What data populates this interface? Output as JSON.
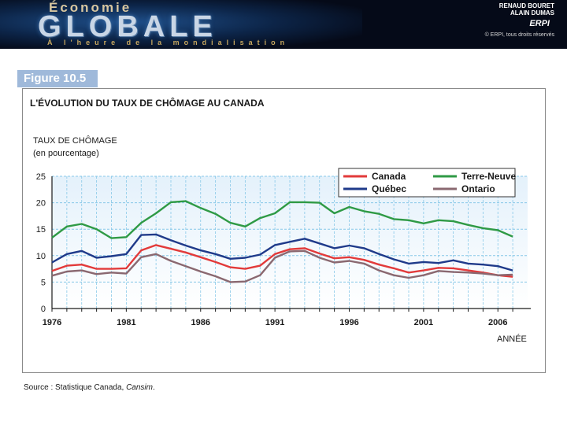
{
  "header": {
    "brand_top": "Économie",
    "brand_main": "GLOBALE",
    "brand_sub": "À l'heure de la mondialisation",
    "author1": "RENAUD BOURET",
    "author2": "ALAIN DUMAS",
    "publisher": "ERPI",
    "copyright": "© ERPI, tous droits réservés"
  },
  "figure": {
    "label": "Figure 10.5",
    "source_prefix": "Source : Statistique Canada, ",
    "source_italic": "Cansim",
    "source_suffix": "."
  },
  "colors": {
    "banner": "#050a18",
    "label_bg": "#9fb9da",
    "grid": "#87c8e8",
    "plot_bg_top": "#e4f1fb",
    "plot_bg_bottom": "#ffffff"
  },
  "chart_data": {
    "type": "line",
    "title": "L'ÉVOLUTION DU TAUX DE CHÔMAGE AU CANADA",
    "ylabel_line1": "TAUX DE CHÔMAGE",
    "ylabel_line2": "(en pourcentage)",
    "xlabel": "ANNÉE",
    "xlim": [
      1976,
      2008
    ],
    "ylim": [
      0,
      25
    ],
    "yticks": [
      0,
      5,
      10,
      15,
      20,
      25
    ],
    "xticks": [
      "1976",
      "1981",
      "1986",
      "1991",
      "1996",
      "2001",
      "2006"
    ],
    "grid": true,
    "legend_position": "top-right",
    "x": [
      1976,
      1977,
      1978,
      1979,
      1980,
      1981,
      1982,
      1983,
      1984,
      1985,
      1986,
      1987,
      1988,
      1989,
      1990,
      1991,
      1992,
      1993,
      1994,
      1995,
      1996,
      1997,
      1998,
      1999,
      2000,
      2001,
      2002,
      2003,
      2004,
      2005,
      2006,
      2007
    ],
    "series": [
      {
        "name": "Canada",
        "color": "#e23a3a",
        "values": [
          7.1,
          8.1,
          8.3,
          7.5,
          7.5,
          7.6,
          11.0,
          12.0,
          11.3,
          10.6,
          9.7,
          8.8,
          7.8,
          7.5,
          8.1,
          10.3,
          11.2,
          11.4,
          10.4,
          9.5,
          9.7,
          9.2,
          8.3,
          7.6,
          6.8,
          7.2,
          7.7,
          7.6,
          7.2,
          6.8,
          6.3,
          6.0
        ]
      },
      {
        "name": "Terre-Neuve",
        "color": "#2f9a45",
        "values": [
          13.4,
          15.5,
          16.0,
          15.0,
          13.3,
          13.5,
          16.2,
          18.0,
          20.1,
          20.3,
          19.0,
          17.9,
          16.2,
          15.5,
          17.1,
          18.0,
          20.1,
          20.1,
          20.0,
          18.0,
          19.2,
          18.4,
          17.9,
          16.9,
          16.7,
          16.1,
          16.7,
          16.5,
          15.8,
          15.2,
          14.8,
          13.6
        ]
      },
      {
        "name": "Québec",
        "color": "#1f3a8a",
        "values": [
          8.7,
          10.3,
          10.9,
          9.6,
          9.9,
          10.3,
          13.9,
          14.0,
          12.9,
          11.9,
          11.0,
          10.3,
          9.4,
          9.6,
          10.2,
          12.0,
          12.6,
          13.2,
          12.3,
          11.4,
          11.9,
          11.4,
          10.3,
          9.3,
          8.5,
          8.8,
          8.6,
          9.1,
          8.5,
          8.3,
          8.0,
          7.2
        ]
      },
      {
        "name": "Ontario",
        "color": "#8a6870",
        "values": [
          6.2,
          7.0,
          7.2,
          6.5,
          6.8,
          6.6,
          9.7,
          10.3,
          9.0,
          8.0,
          7.0,
          6.1,
          5.0,
          5.1,
          6.3,
          9.6,
          10.8,
          10.9,
          9.6,
          8.7,
          9.0,
          8.5,
          7.2,
          6.3,
          5.8,
          6.3,
          7.1,
          6.9,
          6.8,
          6.6,
          6.3,
          6.4
        ]
      }
    ]
  }
}
